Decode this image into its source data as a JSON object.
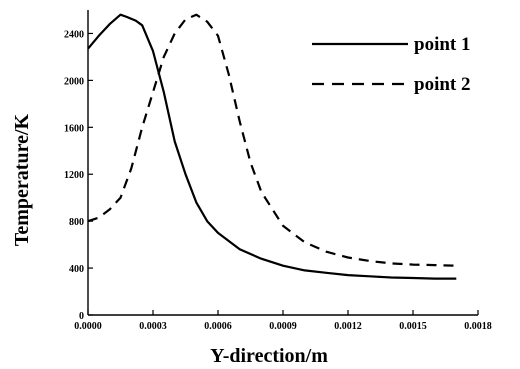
{
  "chart_data": {
    "type": "line",
    "title": "",
    "xlabel": "Y-direction/m",
    "ylabel": "Temperature/K",
    "xlim": [
      0,
      0.0018
    ],
    "ylim": [
      0,
      2600
    ],
    "xticks": [
      0,
      0.0003,
      0.0006,
      0.0009,
      0.0012,
      0.0015,
      0.0018
    ],
    "xtick_labels": [
      "0.0000",
      "0.0003",
      "0.0006",
      "0.0009",
      "0.0012",
      "0.0015",
      "0.0018"
    ],
    "yticks": [
      0,
      400,
      800,
      1200,
      1600,
      2000,
      2400
    ],
    "ytick_labels": [
      "0",
      "400",
      "800",
      "1200",
      "1600",
      "2000",
      "2400"
    ],
    "grid": false,
    "legend_position": "top-right",
    "series": [
      {
        "name": "point 1",
        "style": "solid",
        "color": "#000000",
        "x": [
          0,
          5e-05,
          0.0001,
          0.00015,
          0.00018,
          0.00022,
          0.00025,
          0.0003,
          0.00035,
          0.0004,
          0.00045,
          0.0005,
          0.00055,
          0.0006,
          0.0007,
          0.0008,
          0.0009,
          0.001,
          0.0011,
          0.0012,
          0.0013,
          0.0014,
          0.0015,
          0.0016,
          0.0017
        ],
        "y": [
          2270,
          2380,
          2480,
          2560,
          2540,
          2510,
          2470,
          2250,
          1900,
          1480,
          1200,
          960,
          800,
          700,
          560,
          480,
          420,
          380,
          360,
          340,
          330,
          320,
          315,
          310,
          310
        ]
      },
      {
        "name": "point 2",
        "style": "dashed",
        "color": "#000000",
        "x": [
          0,
          5e-05,
          0.0001,
          0.00015,
          0.0002,
          0.00025,
          0.0003,
          0.00035,
          0.0004,
          0.00045,
          0.0005,
          0.00055,
          0.0006,
          0.00065,
          0.0007,
          0.00075,
          0.0008,
          0.0009,
          0.001,
          0.0011,
          0.0012,
          0.0013,
          0.0014,
          0.0015,
          0.0016,
          0.0017
        ],
        "y": [
          800,
          830,
          900,
          1000,
          1250,
          1600,
          1900,
          2200,
          2400,
          2520,
          2560,
          2500,
          2380,
          2050,
          1650,
          1300,
          1050,
          760,
          620,
          540,
          490,
          460,
          440,
          430,
          425,
          420
        ]
      }
    ]
  }
}
